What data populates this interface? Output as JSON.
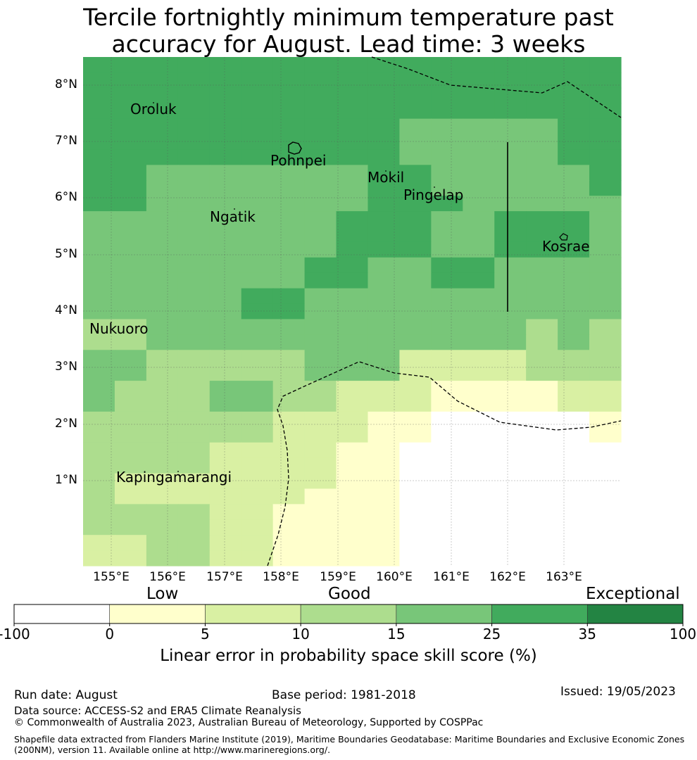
{
  "title_line1": "Tercile fortnightly minimum temperature past",
  "title_line2": "accuracy for August. Lead time: 3 weeks",
  "map": {
    "lat_ticks": [
      "8°N",
      "7°N",
      "6°N",
      "5°N",
      "4°N",
      "3°N",
      "2°N",
      "1°N"
    ],
    "lon_ticks": [
      "155°E",
      "156°E",
      "157°E",
      "158°E",
      "159°E",
      "160°E",
      "161°E",
      "162°E",
      "163°E"
    ],
    "places": [
      "Oroluk",
      "Pohnpei",
      "Mokil",
      "Pingelap",
      "Ngatik",
      "Kosrae",
      "Nukuoro",
      "Kapingamarangi"
    ],
    "colors": {
      "c0": "#ffffff",
      "c1": "#ffffcc",
      "c2": "#d9f0a3",
      "c3": "#addd8e",
      "c4": "#78c679",
      "c5": "#41ab5d",
      "c6": "#238443"
    },
    "grid_rows": [
      "55555555555555555555555555555555",
      "55555555555555555555555555555555",
      "55555555555555555555555555555555",
      "55555555555555555555555555555555",
      "55555555555555555555444444555555",
      "55555555555555555555444444555555",
      "55555555555555555555444444555555",
      "55555444444444444444444444555555",
      "55555444444444444444444444555555",
      "55555444444444444444444444444555",
      "55555444444444444444444444444555",
      "55555444444444444444444444444555",
      "44444444444444444444444444444444",
      "44444444444444444444444444444444",
      "44444444444444444444444444444444",
      "44444444444444444444444444444444",
      "44444444444444444444444444444444",
      "44444444444444444444444444444444",
      "44444444444444444444444444444444",
      "44444444444444444444444444444444",
      "33333444444444444444444444333444",
      "33333444444444444444444444333333",
      "44444333333444444333333333333333",
      "33333333333333333333333333333333",
      "33333333333333333332222111111111",
      "33333333333333333322222111111111",
      "33333333333333333322222111111111",
      "33333333333333333333333333333333",
      "33333333333333333333333333333333",
      "33333333333333333333333333333333",
      "33333333333333333333333333333333",
      "33333333333333333333333333333333",
      "33333333333333333333333333333333"
    ],
    "cells": [
      [
        5,
        5,
        5,
        5,
        5,
        5,
        5,
        5,
        5,
        5,
        5,
        5,
        5,
        5,
        5,
        5,
        5
      ],
      [
        5,
        5,
        5,
        5,
        5,
        5,
        5,
        5,
        5,
        5,
        5,
        5,
        5,
        5,
        5,
        5,
        5
      ],
      [
        5,
        5,
        5,
        5,
        5,
        5,
        5,
        5,
        5,
        5,
        5,
        5,
        5,
        5,
        5,
        5,
        5
      ],
      [
        5,
        5,
        5,
        5,
        5,
        5,
        5,
        5,
        5,
        5,
        5,
        5,
        5,
        5,
        5,
        5,
        5
      ],
      [
        5,
        5,
        5,
        5,
        5,
        5,
        5,
        5,
        5,
        5,
        4,
        4,
        4,
        4,
        4,
        5,
        5
      ],
      [
        5,
        5,
        5,
        5,
        5,
        5,
        5,
        5,
        5,
        5,
        4,
        4,
        4,
        4,
        4,
        5,
        5
      ],
      [
        5,
        5,
        5,
        5,
        5,
        5,
        5,
        5,
        5,
        5,
        4,
        4,
        4,
        4,
        4,
        5,
        5
      ],
      [
        5,
        5,
        4,
        4,
        4,
        4,
        4,
        4,
        4,
        5,
        5,
        4,
        4,
        4,
        4,
        4,
        5
      ],
      [
        5,
        5,
        4,
        4,
        4,
        4,
        4,
        4,
        4,
        5,
        5,
        4,
        4,
        4,
        4,
        4,
        5
      ],
      [
        5,
        5,
        4,
        4,
        4,
        4,
        4,
        4,
        4,
        5,
        5,
        5,
        4,
        4,
        4,
        4,
        4
      ],
      [
        4,
        4,
        4,
        4,
        4,
        4,
        4,
        4,
        5,
        5,
        5,
        4,
        4,
        5,
        5,
        5,
        4
      ],
      [
        4,
        4,
        4,
        4,
        4,
        4,
        4,
        4,
        5,
        5,
        5,
        4,
        4,
        5,
        5,
        5,
        4
      ],
      [
        4,
        4,
        4,
        4,
        4,
        4,
        4,
        4,
        5,
        5,
        5,
        4,
        4,
        5,
        5,
        5,
        4
      ],
      [
        4,
        4,
        4,
        4,
        4,
        4,
        4,
        5,
        5,
        4,
        4,
        5,
        5,
        4,
        4,
        4,
        4
      ],
      [
        4,
        4,
        4,
        4,
        4,
        4,
        4,
        5,
        5,
        4,
        4,
        5,
        5,
        4,
        4,
        4,
        4
      ],
      [
        4,
        4,
        4,
        4,
        4,
        5,
        5,
        4,
        4,
        4,
        4,
        4,
        4,
        4,
        4,
        4,
        4
      ],
      [
        4,
        4,
        4,
        4,
        4,
        5,
        5,
        4,
        4,
        4,
        4,
        4,
        4,
        4,
        4,
        4,
        4
      ],
      [
        3,
        3,
        4,
        4,
        4,
        4,
        4,
        4,
        4,
        4,
        4,
        4,
        4,
        4,
        3,
        4,
        3
      ],
      [
        3,
        3,
        4,
        4,
        4,
        4,
        4,
        4,
        4,
        4,
        4,
        4,
        4,
        4,
        3,
        4,
        3
      ],
      [
        4,
        4,
        3,
        3,
        3,
        3,
        3,
        4,
        4,
        4,
        2,
        2,
        2,
        2,
        3,
        3,
        3
      ],
      [
        4,
        4,
        3,
        3,
        3,
        3,
        3,
        4,
        4,
        4,
        2,
        2,
        2,
        2,
        3,
        3,
        3
      ],
      [
        4,
        3,
        3,
        3,
        4,
        4,
        3,
        3,
        2,
        2,
        2,
        1,
        1,
        1,
        1,
        2,
        2
      ],
      [
        4,
        3,
        3,
        3,
        4,
        4,
        3,
        3,
        2,
        2,
        2,
        1,
        1,
        1,
        1,
        2,
        2
      ],
      [
        3,
        3,
        3,
        3,
        3,
        3,
        2,
        2,
        2,
        1,
        1,
        0,
        0,
        0,
        0,
        0,
        1
      ],
      [
        3,
        3,
        3,
        3,
        3,
        3,
        2,
        2,
        2,
        1,
        1,
        0,
        0,
        0,
        0,
        0,
        1
      ],
      [
        3,
        3,
        3,
        3,
        2,
        2,
        2,
        2,
        1,
        1,
        0,
        0,
        0,
        0,
        0,
        0,
        0
      ],
      [
        3,
        3,
        3,
        3,
        2,
        2,
        2,
        2,
        1,
        1,
        0,
        0,
        0,
        0,
        0,
        0,
        0
      ],
      [
        3,
        2,
        2,
        2,
        2,
        2,
        2,
        2,
        1,
        1,
        0,
        0,
        0,
        0,
        0,
        0,
        0
      ],
      [
        3,
        2,
        2,
        2,
        2,
        2,
        2,
        1,
        1,
        1,
        0,
        0,
        0,
        0,
        0,
        0,
        0
      ],
      [
        3,
        3,
        3,
        3,
        2,
        2,
        1,
        1,
        1,
        1,
        0,
        0,
        0,
        0,
        0,
        0,
        0
      ],
      [
        3,
        3,
        3,
        3,
        2,
        2,
        1,
        1,
        1,
        1,
        0,
        0,
        0,
        0,
        0,
        0,
        0
      ],
      [
        2,
        2,
        3,
        3,
        2,
        2,
        1,
        1,
        1,
        1,
        0,
        0,
        0,
        0,
        0,
        0,
        0
      ],
      [
        2,
        2,
        3,
        3,
        2,
        2,
        1,
        1,
        1,
        1,
        0,
        0,
        0,
        0,
        0,
        0,
        0
      ]
    ]
  },
  "colorbar": {
    "words": [
      "Low",
      "Good",
      "Exceptional"
    ],
    "ticks": [
      "-100",
      "0",
      "5",
      "10",
      "15",
      "25",
      "35",
      "100"
    ],
    "label": "Linear error in probability space skill score (%)"
  },
  "footer": {
    "run_date": "Run date: August",
    "base_period": "Base period: 1981-2018",
    "issued": "Issued: 19/05/2023",
    "data_source": "Data source: ACCESS-S2 and ERA5 Climate Reanalysis",
    "copyright": "© Commonwealth of Australia 2023, Australian Bureau of Meteorology, Supported by COSPPac",
    "shapefile": "Shapefile data extracted from Flanders Marine Institute (2019), Maritime Boundaries Geodatabase: Maritime Boundaries and Exclusive Economic Zones (200NM), version 11. Available online at http://www.marineregions.org/."
  }
}
